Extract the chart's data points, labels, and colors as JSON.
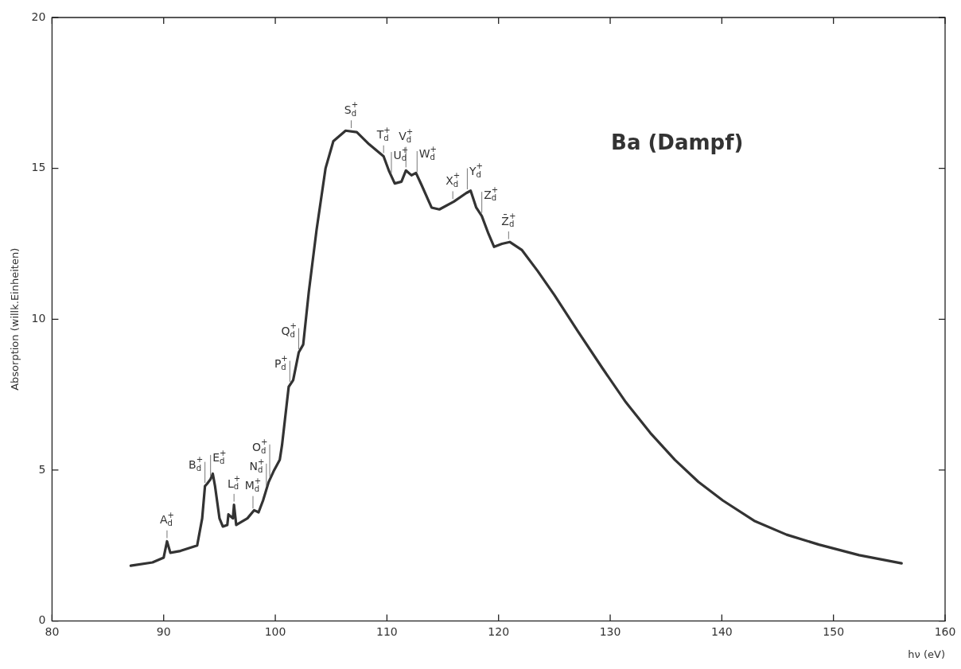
{
  "chart_data": {
    "type": "line",
    "xlabel": "hν (eV)",
    "ylabel": "Absorption (willk.Einheiten)",
    "xlim": [
      80,
      160
    ],
    "xticks": [
      80,
      90,
      100,
      110,
      120,
      130,
      140,
      150,
      160
    ],
    "ylim": [
      0,
      20
    ],
    "yticks": [
      0,
      5,
      10,
      15,
      20
    ],
    "grid": false,
    "legend": false,
    "marker": "none",
    "line_style": "solid",
    "series": [
      {
        "color": "#333333",
        "x": [
          87.05,
          89.0,
          90.0,
          90.3,
          90.6,
          91.5,
          93.0,
          93.45,
          93.7,
          93.9,
          94.2,
          94.4,
          94.6,
          95.0,
          95.3,
          95.7,
          95.8,
          96.2,
          96.3,
          96.5,
          97.5,
          98.1,
          98.5,
          98.9,
          99.4,
          99.9,
          100.4,
          100.6,
          101.2,
          101.6,
          102.1,
          102.5,
          103.0,
          103.7,
          104.5,
          105.2,
          106.3,
          107.3,
          108.4,
          109.7,
          110.2,
          110.7,
          111.3,
          111.7,
          112.2,
          112.6,
          113.1,
          114.0,
          114.7,
          116.0,
          117.1,
          117.5,
          118.0,
          118.5,
          119.1,
          119.6,
          120.3,
          121.0,
          122.1,
          123.5,
          125.0,
          127.1,
          129.3,
          131.4,
          133.6,
          135.8,
          137.9,
          140.1,
          142.9,
          145.8,
          148.7,
          152.3,
          156.1
        ],
        "values": [
          1.83,
          1.94,
          2.1,
          2.64,
          2.26,
          2.32,
          2.5,
          3.4,
          4.47,
          4.55,
          4.7,
          4.88,
          4.47,
          3.4,
          3.13,
          3.18,
          3.53,
          3.4,
          3.85,
          3.18,
          3.4,
          3.67,
          3.6,
          3.99,
          4.6,
          5.0,
          5.34,
          5.82,
          7.76,
          7.98,
          8.9,
          9.16,
          10.9,
          12.97,
          15.0,
          15.9,
          16.25,
          16.2,
          15.8,
          15.4,
          14.9,
          14.5,
          14.56,
          14.93,
          14.77,
          14.85,
          14.45,
          13.7,
          13.64,
          13.9,
          14.18,
          14.26,
          13.7,
          13.42,
          12.83,
          12.4,
          12.5,
          12.56,
          12.29,
          11.6,
          10.8,
          9.6,
          8.38,
          7.25,
          6.23,
          5.34,
          4.61,
          3.99,
          3.32,
          2.86,
          2.53,
          2.18,
          1.91
        ]
      }
    ],
    "annotations": [
      "Ba (Dampf)",
      {
        "text": "A$^{+}$$_{d}$",
        "x": 90.3,
        "y": 2.64
      },
      {
        "text": "B$^{+}$$_{d}$",
        "x": 93.7,
        "y": 4.47
      },
      {
        "text": "E$^{+}$$_{d}$",
        "x": 94.2,
        "y": 4.7
      },
      {
        "text": "L$^{+}$$_{d}$",
        "x": 96.3,
        "y": 3.85
      },
      {
        "text": "M$^{+}$$_{d}$",
        "x": 98.0,
        "y": 3.62
      },
      {
        "text": "N$^{+}$$_{d}$",
        "x": 99.2,
        "y": 4.36
      },
      {
        "text": "O$^{+}$$_{d}$",
        "x": 99.5,
        "y": 4.68
      },
      {
        "text": "P$^{+}$$_{d}$",
        "x": 101.3,
        "y": 7.82
      },
      {
        "text": "Q$^{+}$$_{d}$",
        "x": 102.1,
        "y": 8.9
      },
      {
        "text": "S$^{+}$$_{d}$",
        "x": 106.8,
        "y": 16.23
      },
      {
        "text": "T$^{+}$$_{d}$",
        "x": 109.7,
        "y": 15.4
      },
      {
        "text": "U$^{+}$$_{d}$",
        "x": 110.4,
        "y": 14.74
      },
      {
        "text": "V$^{+}$$_{d}$",
        "x": 111.7,
        "y": 14.93
      },
      {
        "text": "W$^{+}$$_{d}$",
        "x": 112.7,
        "y": 14.77
      },
      {
        "text": "X$^{+}$$_{d}$",
        "x": 115.9,
        "y": 13.88
      },
      {
        "text": "Y$^{+}$$_{d}$",
        "x": 117.2,
        "y": 14.2
      },
      {
        "text": "Z$^{+}$$_{d}$",
        "x": 118.5,
        "y": 13.42
      },
      {
        "text": "Z̄$^{+}$$_{d}$",
        "x": 120.9,
        "y": 12.55
      }
    ]
  }
}
